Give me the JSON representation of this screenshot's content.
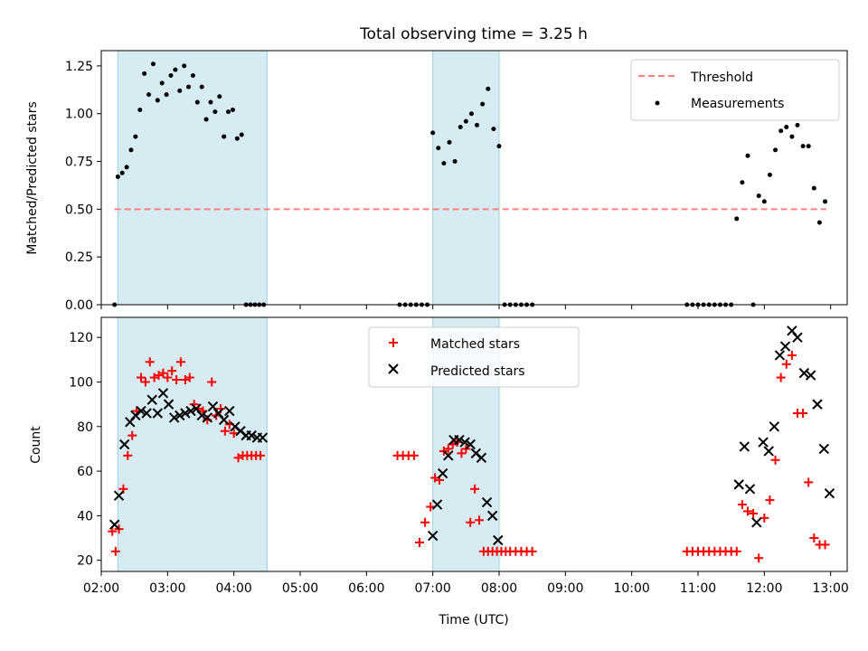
{
  "chart_data": [
    {
      "type": "scatter",
      "title": "Total observing time = 3.25 h",
      "ylabel": "Matched/Predicted stars",
      "xlabel": "",
      "xlim": [
        "02:00",
        "13:15"
      ],
      "ylim": [
        0,
        1.33
      ],
      "yticks": [
        "0.00",
        "0.25",
        "0.50",
        "0.75",
        "1.00",
        "1.25"
      ],
      "legend_position": "top-right",
      "shaded_intervals": [
        [
          "02:15",
          "04:30"
        ],
        [
          "07:00",
          "08:00"
        ]
      ],
      "threshold": {
        "name": "Threshold",
        "value": 0.5,
        "x_range": [
          "02:12",
          "12:56"
        ],
        "color": "#ff7f7f"
      },
      "series": [
        {
          "name": "Measurements",
          "color": "#000000",
          "x": [
            "02:12",
            "02:15",
            "02:19",
            "02:23",
            "02:27",
            "02:31",
            "02:35",
            "02:39",
            "02:43",
            "02:47",
            "02:51",
            "02:55",
            "02:59",
            "03:03",
            "03:07",
            "03:11",
            "03:15",
            "03:19",
            "03:23",
            "03:27",
            "03:31",
            "03:35",
            "03:39",
            "03:43",
            "03:47",
            "03:51",
            "03:55",
            "03:59",
            "04:03",
            "04:07",
            "04:11",
            "04:15",
            "04:19",
            "04:23",
            "04:27",
            "06:30",
            "06:35",
            "06:40",
            "06:45",
            "06:50",
            "06:55",
            "07:00",
            "07:05",
            "07:10",
            "07:15",
            "07:20",
            "07:25",
            "07:30",
            "07:35",
            "07:40",
            "07:45",
            "07:50",
            "07:55",
            "08:00",
            "08:05",
            "08:10",
            "08:15",
            "08:20",
            "08:25",
            "08:30",
            "10:50",
            "10:55",
            "11:00",
            "11:05",
            "11:10",
            "11:15",
            "11:20",
            "11:25",
            "11:30",
            "11:35",
            "11:40",
            "11:45",
            "11:50",
            "11:55",
            "12:00",
            "12:05",
            "12:10",
            "12:15",
            "12:20",
            "12:25",
            "12:30",
            "12:35",
            "12:40",
            "12:45",
            "12:50",
            "12:55"
          ],
          "y": [
            0.0,
            0.67,
            0.69,
            0.72,
            0.81,
            0.88,
            1.02,
            1.21,
            1.1,
            1.26,
            1.07,
            1.16,
            1.1,
            1.2,
            1.23,
            1.12,
            1.25,
            1.14,
            1.2,
            1.06,
            1.14,
            0.97,
            1.06,
            1.01,
            1.09,
            0.88,
            1.01,
            1.02,
            0.87,
            0.89,
            0.0,
            0.0,
            0.0,
            0.0,
            0.0,
            0.0,
            0.0,
            0.0,
            0.0,
            0.0,
            0.0,
            0.9,
            0.82,
            0.74,
            0.85,
            0.75,
            0.93,
            0.96,
            1.0,
            0.94,
            1.05,
            1.13,
            0.92,
            0.83,
            0.0,
            0.0,
            0.0,
            0.0,
            0.0,
            0.0,
            0.0,
            0.0,
            0.0,
            0.0,
            0.0,
            0.0,
            0.0,
            0.0,
            0.0,
            0.45,
            0.64,
            0.78,
            0.0,
            0.57,
            0.54,
            0.68,
            0.81,
            0.91,
            0.93,
            0.88,
            0.94,
            0.83,
            0.83,
            0.61,
            0.43,
            0.54
          ]
        }
      ]
    },
    {
      "type": "scatter",
      "title": "",
      "xlabel": "Time (UTC)",
      "ylabel": "Count",
      "xlim": [
        "02:00",
        "13:15"
      ],
      "ylim": [
        15,
        129
      ],
      "yticks": [
        "20",
        "40",
        "60",
        "80",
        "100",
        "120"
      ],
      "xticks": [
        "02:00",
        "03:00",
        "04:00",
        "05:00",
        "06:00",
        "07:00",
        "08:00",
        "09:00",
        "10:00",
        "11:00",
        "12:00",
        "13:00"
      ],
      "legend_position": "top-center",
      "shaded_intervals": [
        [
          "02:15",
          "04:30"
        ],
        [
          "07:00",
          "08:00"
        ]
      ],
      "series": [
        {
          "name": "Matched stars",
          "marker": "+",
          "color": "#ff0000",
          "x": [
            "02:10",
            "02:13",
            "02:16",
            "02:20",
            "02:24",
            "02:28",
            "02:32",
            "02:36",
            "02:40",
            "02:44",
            "02:48",
            "02:52",
            "02:56",
            "03:00",
            "03:04",
            "03:08",
            "03:12",
            "03:16",
            "03:20",
            "03:24",
            "03:28",
            "03:32",
            "03:36",
            "03:40",
            "03:44",
            "03:48",
            "03:52",
            "03:56",
            "04:00",
            "04:04",
            "04:08",
            "04:12",
            "04:16",
            "04:20",
            "04:24",
            "06:28",
            "06:33",
            "06:38",
            "06:43",
            "06:48",
            "06:53",
            "06:58",
            "07:02",
            "07:06",
            "07:10",
            "07:14",
            "07:18",
            "07:22",
            "07:26",
            "07:30",
            "07:34",
            "07:38",
            "07:42",
            "07:46",
            "07:50",
            "07:54",
            "07:58",
            "08:02",
            "08:06",
            "08:10",
            "08:15",
            "08:20",
            "08:25",
            "08:30",
            "10:50",
            "10:55",
            "11:00",
            "11:05",
            "11:10",
            "11:15",
            "11:20",
            "11:25",
            "11:30",
            "11:35",
            "11:40",
            "11:45",
            "11:50",
            "11:55",
            "12:00",
            "12:05",
            "12:10",
            "12:15",
            "12:20",
            "12:25",
            "12:30",
            "12:35",
            "12:40",
            "12:45",
            "12:50",
            "12:55"
          ],
          "y": [
            33,
            24,
            34,
            52,
            67,
            76,
            87,
            102,
            100,
            109,
            102,
            103,
            104,
            102,
            105,
            101,
            109,
            101,
            102,
            90,
            88,
            87,
            83,
            100,
            85,
            88,
            78,
            81,
            77,
            66,
            67,
            67,
            67,
            67,
            67,
            67,
            67,
            67,
            67,
            28,
            37,
            44,
            57,
            56,
            69,
            70,
            72,
            73,
            68,
            70,
            37,
            52,
            38,
            24,
            24,
            24,
            24,
            24,
            24,
            24,
            24,
            24,
            24,
            24,
            24,
            24,
            24,
            24,
            24,
            24,
            24,
            24,
            24,
            24,
            45,
            42,
            41,
            21,
            39,
            47,
            65,
            102,
            108,
            112,
            86,
            86,
            55,
            30,
            27,
            27
          ]
        },
        {
          "name": "Predicted stars",
          "marker": "x",
          "color": "#000000",
          "x": [
            "02:12",
            "02:16",
            "02:21",
            "02:26",
            "02:31",
            "02:36",
            "02:41",
            "02:46",
            "02:51",
            "02:56",
            "03:01",
            "03:06",
            "03:11",
            "03:16",
            "03:21",
            "03:26",
            "03:31",
            "03:36",
            "03:41",
            "03:46",
            "03:51",
            "03:56",
            "04:01",
            "04:06",
            "04:11",
            "04:16",
            "04:21",
            "04:26",
            "07:00",
            "07:04",
            "07:09",
            "07:14",
            "07:19",
            "07:24",
            "07:29",
            "07:34",
            "07:39",
            "07:44",
            "07:49",
            "07:54",
            "07:59",
            "11:37",
            "11:42",
            "11:47",
            "11:53",
            "11:59",
            "12:04",
            "12:09",
            "12:14",
            "12:19",
            "12:25",
            "12:30",
            "12:36",
            "12:42",
            "12:48",
            "12:54",
            "12:59"
          ],
          "y": [
            36,
            49,
            72,
            82,
            85,
            87,
            86,
            92,
            86,
            95,
            90,
            84,
            85,
            86,
            87,
            88,
            85,
            84,
            89,
            86,
            83,
            87,
            80,
            78,
            76,
            76,
            75,
            75,
            31,
            45,
            59,
            67,
            74,
            74,
            73,
            72,
            68,
            66,
            46,
            40,
            29,
            54,
            71,
            52,
            37,
            73,
            69,
            80,
            112,
            116,
            123,
            120,
            104,
            103,
            90,
            70,
            50
          ]
        }
      ]
    }
  ]
}
